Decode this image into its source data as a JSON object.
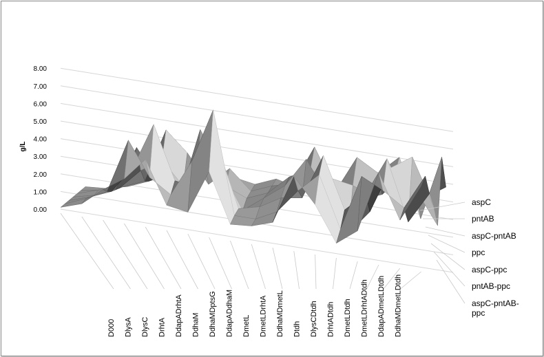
{
  "chart_data": {
    "type": "area",
    "subtype": "3d-surface",
    "title": "",
    "ylabel": "g/L",
    "ylim": [
      0,
      8
    ],
    "yticks": [
      "0.00",
      "1.00",
      "2.00",
      "3.00",
      "4.00",
      "5.00",
      "6.00",
      "7.00",
      "8.00"
    ],
    "grid": true,
    "categories": [
      "D000",
      "DlysA",
      "DlysC",
      "DrhtA",
      "DdapADrhtA",
      "DdhaM",
      "DdhaMDptsG",
      "DdapADdhaM",
      "DmetL",
      "DmetLDrhtA",
      "DdhaMDmetL",
      "Dtdh",
      "DlysCDtdh",
      "DrhtADtdh",
      "DmetLDtdh",
      "DmetLDrhtADtdh",
      "DdapADmetLDtdh",
      "DdhaMDmetLDtdh"
    ],
    "series": [
      {
        "name": "aspC",
        "values": [
          0.1,
          0.5,
          1.5,
          2.3,
          3.6,
          1.2,
          1.0,
          3.5,
          0.7,
          0.8,
          1.2,
          4.0,
          2.6,
          0.6,
          1.5,
          5.0,
          2.5,
          4.6
        ]
      },
      {
        "name": "pntAB",
        "values": [
          0.1,
          0.6,
          1.2,
          4.3,
          2.4,
          1.6,
          3.7,
          6.8,
          1.0,
          1.0,
          1.6,
          3.0,
          4.1,
          1.2,
          4.4,
          3.8,
          3.0,
          5.0
        ]
      },
      {
        "name": "aspC-pntAB",
        "values": [
          0.1,
          0.5,
          1.0,
          2.5,
          5.2,
          2.2,
          2.0,
          4.6,
          1.2,
          1.5,
          2.2,
          2.4,
          5.0,
          2.1,
          3.2,
          5.4,
          2.0,
          3.8
        ]
      },
      {
        "name": "ppc",
        "values": [
          0.1,
          0.4,
          0.9,
          3.5,
          1.8,
          0.9,
          5.1,
          3.0,
          0.9,
          1.8,
          2.7,
          4.4,
          2.5,
          0.6,
          2.0,
          4.7,
          5.5,
          2.9
        ]
      },
      {
        "name": "aspC-ppc",
        "values": [
          0.1,
          0.5,
          0.8,
          2.0,
          2.8,
          1.5,
          3.1,
          1.9,
          1.4,
          1.9,
          3.0,
          3.6,
          3.3,
          3.1,
          2.6,
          4.2,
          3.4,
          1.6
        ]
      },
      {
        "name": "pntAB-ppc",
        "values": [
          0.1,
          0.3,
          0.7,
          1.2,
          4.3,
          3.2,
          1.6,
          2.7,
          1.6,
          2.1,
          2.4,
          4.7,
          2.4,
          4.5,
          3.8,
          4.9,
          1.6,
          5.3
        ]
      },
      {
        "name": "aspC-pntAB-ppc",
        "values": [
          0.1,
          0.2,
          0.5,
          1.0,
          1.6,
          2.4,
          2.1,
          2.0,
          1.8,
          2.3,
          2.0,
          2.3,
          2.7,
          1.9,
          2.4,
          3.7,
          2.6,
          3.4
        ]
      }
    ]
  }
}
